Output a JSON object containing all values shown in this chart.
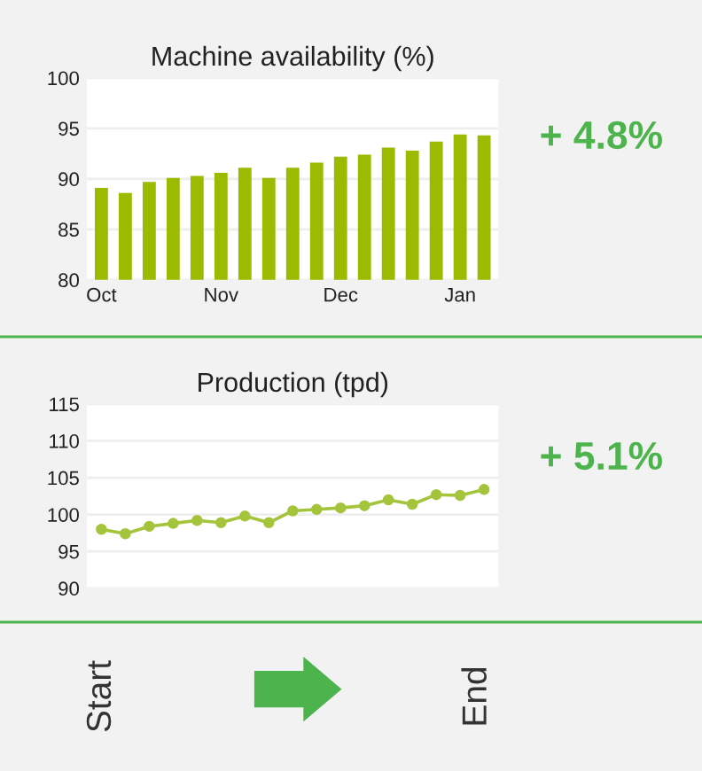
{
  "chart_data": [
    {
      "type": "bar",
      "title": "Machine availability (%)",
      "categories": [
        "Oct",
        null,
        null,
        null,
        null,
        "Nov",
        null,
        null,
        null,
        null,
        "Dec",
        null,
        null,
        null,
        null,
        "Jan",
        null
      ],
      "values": [
        89.1,
        88.6,
        89.7,
        90.1,
        90.3,
        90.6,
        91.1,
        90.1,
        91.1,
        91.6,
        92.2,
        92.4,
        93.1,
        92.8,
        93.7,
        94.4,
        94.3
      ],
      "color": "#9bbb00",
      "ylim": [
        80,
        100
      ],
      "yticks": [
        80,
        85,
        90,
        95,
        100
      ],
      "grid": "y",
      "annotations": [
        "+ 4.8%"
      ]
    },
    {
      "type": "line",
      "title": "Production (tpd)",
      "categories": [
        null,
        null,
        null,
        null,
        null,
        null,
        null,
        null,
        null,
        null,
        null,
        null,
        null,
        null,
        null,
        null,
        null
      ],
      "values": [
        98.0,
        97.4,
        98.4,
        98.8,
        99.2,
        98.9,
        99.8,
        98.9,
        100.5,
        100.7,
        100.9,
        101.2,
        102.0,
        101.4,
        102.7,
        102.6,
        103.4
      ],
      "color": "#a4c43c",
      "marker": "circle",
      "ylim": [
        90,
        115
      ],
      "yticks": [
        90,
        95,
        100,
        105,
        110,
        115
      ],
      "grid": "y",
      "annotations": [
        "+ 5.1%"
      ]
    },
    {
      "type": "other",
      "annotations": [
        "Start",
        "End"
      ]
    }
  ]
}
